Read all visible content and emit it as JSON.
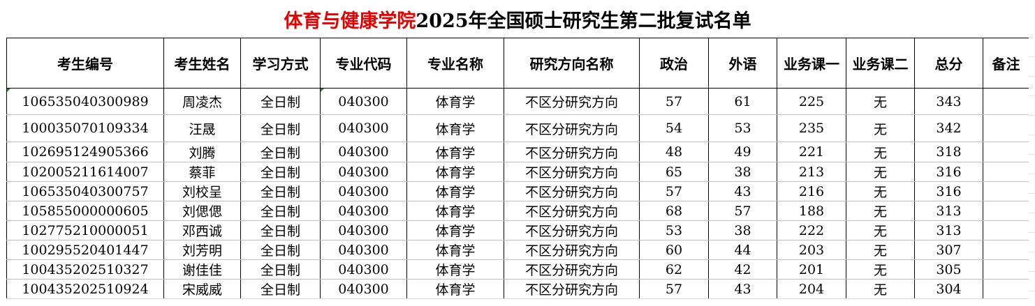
{
  "title": {
    "red_part": "体育与健康学院",
    "black_part": "2025年全国硕士研究生第二批复试名单"
  },
  "headers": [
    "考生编号",
    "考生姓名",
    "学习方式",
    "专业代码",
    "专业名称",
    "研究方向名称",
    "政治",
    "外语",
    "业务课一",
    "业务课二",
    "总分",
    "备注"
  ],
  "rows": [
    [
      "106535040300989",
      "周凌杰",
      "全日制",
      "040300",
      "体育学",
      "不区分研究方向",
      "57",
      "61",
      "225",
      "无",
      "343",
      ""
    ],
    [
      "100035070109334",
      "汪晟",
      "全日制",
      "040300",
      "体育学",
      "不区分研究方向",
      "54",
      "53",
      "235",
      "无",
      "342",
      ""
    ],
    [
      "102695124905366",
      "刘腾",
      "全日制",
      "040300",
      "体育学",
      "不区分研究方向",
      "48",
      "49",
      "221",
      "无",
      "318",
      ""
    ],
    [
      "102005211614007",
      "蔡菲",
      "全日制",
      "040300",
      "体育学",
      "不区分研究方向",
      "65",
      "38",
      "213",
      "无",
      "316",
      ""
    ],
    [
      "106535040300757",
      "刘校呈",
      "全日制",
      "040300",
      "体育学",
      "不区分研究方向",
      "57",
      "43",
      "216",
      "无",
      "316",
      ""
    ],
    [
      "105855000000605",
      "刘偲偲",
      "全日制",
      "040300",
      "体育学",
      "不区分研究方向",
      "68",
      "57",
      "188",
      "无",
      "313",
      ""
    ],
    [
      "102775210000051",
      "邓西诚",
      "全日制",
      "040300",
      "体育学",
      "不区分研究方向",
      "53",
      "38",
      "222",
      "无",
      "313",
      ""
    ],
    [
      "100295520401447",
      "刘芳明",
      "全日制",
      "040300",
      "体育学",
      "不区分研究方向",
      "60",
      "44",
      "203",
      "无",
      "307",
      ""
    ],
    [
      "100435202510327",
      "谢佳佳",
      "全日制",
      "040300",
      "体育学",
      "不区分研究方向",
      "62",
      "42",
      "201",
      "无",
      "305",
      ""
    ],
    [
      "100435202510924",
      "宋威威",
      "全日制",
      "040300",
      "体育学",
      "不区分研究方向",
      "57",
      "43",
      "204",
      "无",
      "304",
      ""
    ]
  ]
}
